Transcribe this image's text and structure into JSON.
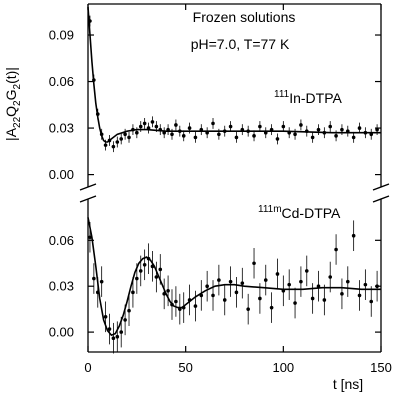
{
  "chart_data": {
    "type": "scatter",
    "annotations": {
      "line1": "Frozen solutions",
      "line2": "pH=7.0, T=77 K",
      "upper_sup": "111",
      "upper_main": "In-DTPA",
      "lower_sup": "111m",
      "lower_main": "Cd-DTPA"
    },
    "ylabel": {
      "open": "|A",
      "sub1": "22",
      "mid1": "Q",
      "sub2": "2",
      "mid2": "G",
      "sub3": "2",
      "close": "(t)|"
    },
    "xlabel": "t [ns]",
    "xlim": [
      0,
      150
    ],
    "x_ticks": [
      "0",
      "50",
      "100",
      "150"
    ],
    "x_tick_values": [
      0,
      50,
      100,
      150
    ],
    "panels": [
      {
        "name": "upper",
        "ylim": [
          -0.008,
          0.11
        ],
        "y_ticks": [
          "0.00",
          "0.03",
          "0.06",
          "0.09"
        ],
        "y_tick_values": [
          0.0,
          0.03,
          0.06,
          0.09
        ],
        "fit": {
          "x": [
            0,
            1,
            2,
            3,
            4,
            5,
            6,
            7,
            8,
            9,
            10,
            12,
            15,
            20,
            25,
            30,
            40,
            50,
            75,
            100,
            125,
            150
          ],
          "y": [
            0.108,
            0.09,
            0.073,
            0.058,
            0.046,
            0.037,
            0.03,
            0.025,
            0.022,
            0.021,
            0.021,
            0.023,
            0.026,
            0.028,
            0.029,
            0.029,
            0.028,
            0.028,
            0.028,
            0.028,
            0.027,
            0.027
          ]
        },
        "points": {
          "x": [
            1,
            3,
            5,
            7,
            9,
            11,
            13,
            15,
            17,
            19,
            21,
            23,
            25,
            27,
            29,
            31,
            33,
            35,
            37,
            39,
            41,
            43,
            45,
            47,
            49,
            52,
            55,
            58,
            61,
            64,
            67,
            70,
            73,
            76,
            79,
            82,
            85,
            88,
            91,
            94,
            97,
            100,
            103,
            106,
            109,
            112,
            115,
            118,
            121,
            124,
            127,
            130,
            133,
            136,
            139,
            142,
            145,
            148
          ],
          "y": [
            0.099,
            0.061,
            0.039,
            0.026,
            0.019,
            0.022,
            0.018,
            0.021,
            0.023,
            0.026,
            0.024,
            0.029,
            0.027,
            0.031,
            0.033,
            0.03,
            0.034,
            0.031,
            0.029,
            0.027,
            0.029,
            0.026,
            0.032,
            0.028,
            0.025,
            0.03,
            0.024,
            0.029,
            0.027,
            0.033,
            0.026,
            0.028,
            0.031,
            0.024,
            0.029,
            0.028,
            0.025,
            0.031,
            0.027,
            0.029,
            0.023,
            0.031,
            0.027,
            0.026,
            0.032,
            0.028,
            0.024,
            0.029,
            0.027,
            0.031,
            0.025,
            0.029,
            0.028,
            0.024,
            0.03,
            0.027,
            0.026,
            0.029
          ]
        }
      },
      {
        "name": "lower",
        "ylim": [
          -0.013,
          0.087
        ],
        "y_ticks": [
          "0.00",
          "0.03",
          "0.06"
        ],
        "y_tick_values": [
          0.0,
          0.03,
          0.06
        ],
        "fit": {
          "x": [
            0,
            2,
            4,
            6,
            8,
            10,
            12,
            14,
            16,
            18,
            20,
            22,
            24,
            26,
            28,
            30,
            32,
            34,
            36,
            38,
            40,
            42,
            44,
            46,
            48,
            50,
            55,
            60,
            65,
            70,
            75,
            80,
            90,
            100,
            110,
            120,
            130,
            140,
            150
          ],
          "y": [
            0.075,
            0.062,
            0.043,
            0.022,
            0.008,
            0.001,
            -0.002,
            -0.001,
            0.004,
            0.011,
            0.02,
            0.03,
            0.039,
            0.045,
            0.048,
            0.049,
            0.047,
            0.043,
            0.037,
            0.031,
            0.025,
            0.02,
            0.017,
            0.016,
            0.016,
            0.018,
            0.023,
            0.027,
            0.03,
            0.031,
            0.031,
            0.03,
            0.029,
            0.028,
            0.028,
            0.029,
            0.029,
            0.028,
            0.028
          ]
        },
        "points": {
          "x": [
            1,
            3,
            5,
            7,
            9,
            11,
            13,
            15,
            17,
            19,
            21,
            23,
            25,
            27,
            29,
            31,
            33,
            35,
            37,
            39,
            41,
            43,
            45,
            47,
            49,
            52,
            55,
            58,
            61,
            64,
            67,
            70,
            73,
            76,
            79,
            82,
            85,
            88,
            91,
            94,
            97,
            100,
            103,
            106,
            109,
            112,
            115,
            118,
            121,
            124,
            127,
            130,
            133,
            136,
            139,
            142,
            145,
            148
          ],
          "y": [
            0.062,
            0.035,
            0.026,
            0.033,
            0.01,
            0.002,
            -0.004,
            -0.003,
            0.0,
            0.008,
            0.014,
            0.026,
            0.035,
            0.04,
            0.044,
            0.048,
            0.043,
            0.036,
            0.041,
            0.025,
            0.027,
            0.018,
            0.02,
            0.015,
            0.016,
            0.021,
            0.017,
            0.024,
            0.03,
            0.024,
            0.034,
            0.021,
            0.033,
            0.026,
            0.032,
            0.015,
            0.045,
            0.022,
            0.034,
            0.016,
            0.038,
            0.027,
            0.031,
            0.019,
            0.033,
            0.04,
            0.022,
            0.03,
            0.021,
            0.036,
            0.054,
            0.025,
            0.033,
            0.063,
            0.024,
            0.031,
            0.02,
            0.03
          ]
        }
      }
    ],
    "colors": {
      "axes": "#000000",
      "points": "#000000",
      "fit": "#000000"
    },
    "grid": false,
    "legend": "none"
  }
}
